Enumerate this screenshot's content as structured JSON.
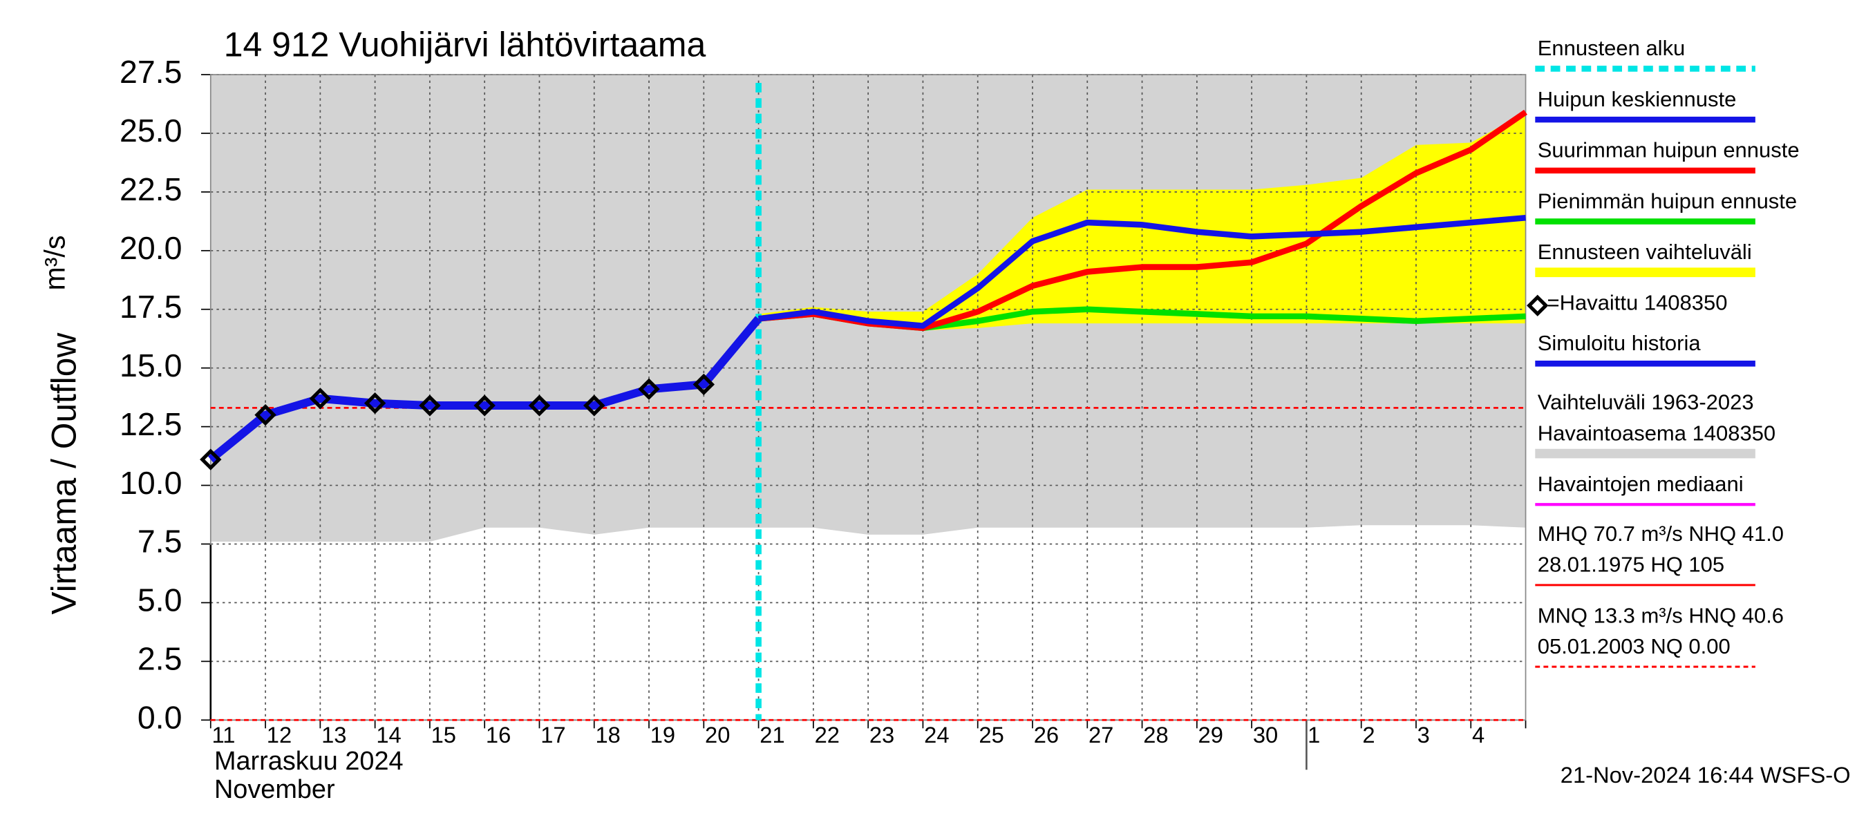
{
  "chart_data": {
    "type": "line",
    "title": "14 912 Vuohijärvi lähtövirtaama",
    "y_label": "Virtaama / Outflow",
    "y_unit": "m³/s",
    "x_label": [
      "Marraskuu 2024",
      "November"
    ],
    "footer": "21-Nov-2024 16:44 WSFS-O",
    "categories": [
      "11",
      "12",
      "13",
      "14",
      "15",
      "16",
      "17",
      "18",
      "19",
      "20",
      "21",
      "22",
      "23",
      "24",
      "25",
      "26",
      "27",
      "28",
      "29",
      "30",
      "1",
      "2",
      "3",
      "4",
      null
    ],
    "month_break": 20,
    "ylim": [
      0,
      27.5
    ],
    "yticks": [
      {
        "value": 0,
        "label": "0.0"
      },
      2.5,
      {
        "value": 5,
        "label": "5.0"
      },
      7.5,
      {
        "value": 10,
        "label": "10.0"
      },
      12.5,
      {
        "value": 15,
        "label": "15.0"
      },
      17.5,
      {
        "value": 20,
        "label": "20.0"
      },
      22.5,
      {
        "value": 25,
        "label": "25.0"
      },
      27.5
    ],
    "grid": true,
    "forecast_start": {
      "name": "Ennusteen alku",
      "index": 10,
      "color": "#00e5e5"
    },
    "series": [
      {
        "name": "Huipun keskiennuste",
        "kind": "line",
        "color": "#1414e6",
        "values": [
          null,
          null,
          null,
          null,
          null,
          null,
          null,
          null,
          null,
          null,
          17.1,
          17.4,
          17.0,
          16.8,
          18.4,
          20.4,
          21.2,
          21.1,
          20.8,
          20.6,
          20.7,
          20.8,
          21.0,
          21.2,
          21.4
        ]
      },
      {
        "name": "Suurimman huipun ennuste",
        "kind": "line",
        "color": "#ff0000",
        "values": [
          null,
          null,
          null,
          null,
          null,
          null,
          null,
          null,
          null,
          null,
          17.1,
          17.3,
          16.9,
          16.7,
          17.4,
          18.5,
          19.1,
          19.3,
          19.3,
          19.5,
          20.3,
          21.9,
          23.3,
          24.3,
          25.9
        ]
      },
      {
        "name": "Pienimmän huipun ennuste",
        "kind": "line",
        "color": "#00e000",
        "values": [
          null,
          null,
          null,
          null,
          null,
          null,
          null,
          null,
          null,
          null,
          17.1,
          17.3,
          16.9,
          16.7,
          17.0,
          17.4,
          17.5,
          17.4,
          17.3,
          17.2,
          17.2,
          17.1,
          17.0,
          17.1,
          17.2
        ]
      },
      {
        "name": "Ennusteen vaihteluväli",
        "kind": "band",
        "color": "#ffff00",
        "upper": [
          null,
          null,
          null,
          null,
          null,
          null,
          null,
          null,
          null,
          null,
          17.3,
          17.6,
          17.4,
          17.4,
          19.0,
          21.4,
          22.6,
          22.6,
          22.6,
          22.6,
          22.8,
          23.1,
          24.5,
          24.6,
          25.9
        ],
        "lower": [
          null,
          null,
          null,
          null,
          null,
          null,
          null,
          null,
          null,
          null,
          17.0,
          17.2,
          16.8,
          16.6,
          16.7,
          16.9,
          16.9,
          16.9,
          16.9,
          16.9,
          16.9,
          16.9,
          16.9,
          16.9,
          16.9
        ]
      },
      {
        "name": "=Havaittu 1408350",
        "kind": "points",
        "color": "#000000",
        "values": [
          11.1,
          13.0,
          13.7,
          13.5,
          13.4,
          13.4,
          13.4,
          13.4,
          14.1,
          14.3,
          null,
          null,
          null,
          null,
          null,
          null,
          null,
          null,
          null,
          null,
          null,
          null,
          null,
          null,
          null
        ]
      },
      {
        "name": "Simuloitu historia",
        "kind": "line",
        "color": "#1414e6",
        "values": [
          11.1,
          13.0,
          13.7,
          13.5,
          13.4,
          13.4,
          13.4,
          13.4,
          14.1,
          14.3,
          17.1,
          null,
          null,
          null,
          null,
          null,
          null,
          null,
          null,
          null,
          null,
          null,
          null,
          null,
          null
        ]
      },
      {
        "name": [
          "Vaihteluväli 1963-2023",
          " Havaintoasema 1408350"
        ],
        "kind": "band",
        "color": "#d3d3d3",
        "upper": [
          27.5,
          27.5,
          27.5,
          27.5,
          27.5,
          27.5,
          27.5,
          27.5,
          27.5,
          27.5,
          27.5,
          27.5,
          27.5,
          27.5,
          27.5,
          27.5,
          27.5,
          27.5,
          27.5,
          27.5,
          27.5,
          27.5,
          27.5,
          27.5,
          27.5
        ],
        "lower": [
          7.6,
          7.6,
          7.6,
          7.6,
          7.6,
          8.2,
          8.2,
          7.9,
          8.2,
          8.2,
          8.2,
          8.2,
          7.9,
          7.9,
          8.2,
          8.2,
          8.2,
          8.2,
          8.2,
          8.2,
          8.2,
          8.3,
          8.3,
          8.3,
          8.2
        ]
      }
    ],
    "legend_only": [
      {
        "name": "Havaintojen mediaani",
        "color": "#ff00ff"
      }
    ],
    "ref_lines": [
      {
        "name": [
          "MHQ 70.7 m³/s NHQ 41.0",
          "28.01.1975 HQ  105"
        ],
        "value": null,
        "color": "#ff0000",
        "dashed": false
      },
      {
        "name": [
          "MNQ 13.3 m³/s HNQ 40.6",
          "05.01.2003 NQ 0.00"
        ],
        "value": 13.3,
        "color": "#ff0000",
        "dashed": true
      },
      {
        "name": null,
        "value": 0,
        "color": "#ff0000",
        "dashed": true
      }
    ]
  }
}
